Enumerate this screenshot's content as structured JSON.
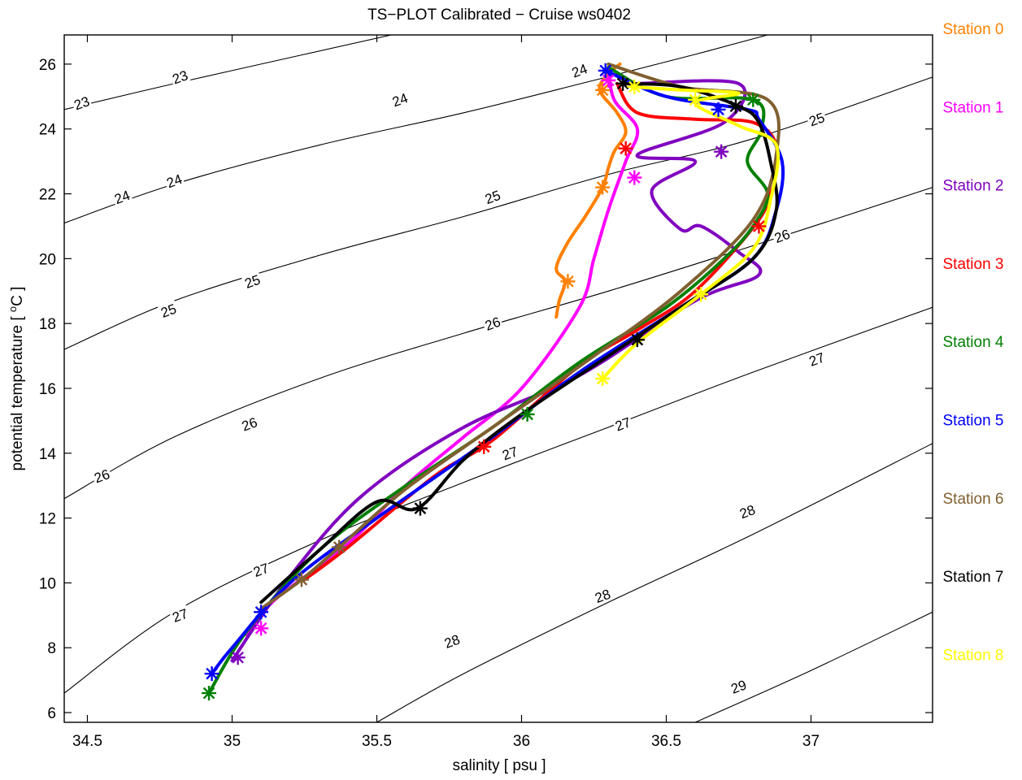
{
  "chart_data": {
    "type": "line",
    "title": "TS−PLOT Calibrated − Cruise ws0402",
    "xlabel": "salinity [ psu ]",
    "ylabel": "potential temperature [ ",
    "ylabel_sup": "o",
    "ylabel_unit": "C ]",
    "xlim": [
      34.42,
      37.42
    ],
    "ylim": [
      5.7,
      26.9
    ],
    "xticks": [
      "34.5",
      "35",
      "35.5",
      "36",
      "36.5",
      "37"
    ],
    "yticks": [
      "6",
      "8",
      "10",
      "12",
      "14",
      "16",
      "18",
      "20",
      "22",
      "24",
      "26"
    ],
    "grid": false,
    "legend_position": "right outside",
    "contours": [
      {
        "label": "23",
        "points": [
          [
            34.42,
            24.6
          ],
          [
            34.8,
            25.4
          ],
          [
            35.25,
            26.3
          ],
          [
            35.55,
            26.9
          ]
        ]
      },
      {
        "label": "24",
        "points": [
          [
            34.42,
            21.1
          ],
          [
            34.8,
            22.3
          ],
          [
            35.3,
            23.5
          ],
          [
            35.8,
            24.5
          ],
          [
            36.25,
            25.5
          ],
          [
            36.6,
            26.3
          ],
          [
            36.85,
            26.9
          ]
        ]
      },
      {
        "label": "25",
        "points": [
          [
            34.42,
            17.2
          ],
          [
            34.8,
            18.7
          ],
          [
            35.3,
            20.1
          ],
          [
            35.8,
            21.3
          ],
          [
            36.3,
            22.6
          ],
          [
            36.8,
            23.7
          ],
          [
            37.42,
            25.6
          ]
        ]
      },
      {
        "label": "26",
        "points": [
          [
            34.42,
            12.6
          ],
          [
            34.8,
            14.5
          ],
          [
            35.3,
            16.3
          ],
          [
            35.8,
            17.7
          ],
          [
            36.3,
            19.0
          ],
          [
            36.8,
            20.4
          ],
          [
            37.42,
            22.2
          ]
        ]
      },
      {
        "label": "27",
        "points": [
          [
            34.42,
            6.6
          ],
          [
            34.8,
            9.1
          ],
          [
            35.3,
            11.3
          ],
          [
            35.8,
            13.1
          ],
          [
            36.3,
            14.8
          ],
          [
            36.8,
            16.5
          ],
          [
            37.42,
            18.5
          ]
        ]
      },
      {
        "label": "28",
        "points": [
          [
            35.5,
            5.7
          ],
          [
            35.8,
            7.2
          ],
          [
            36.3,
            9.4
          ],
          [
            36.8,
            11.5
          ],
          [
            37.42,
            14.3
          ]
        ]
      },
      {
        "label": "29",
        "points": [
          [
            36.6,
            5.7
          ],
          [
            37.0,
            7.3
          ],
          [
            37.42,
            9.1
          ]
        ]
      }
    ],
    "contour_labels": [
      {
        "text": "23",
        "x": 34.48,
        "y": 24.8
      },
      {
        "text": "23",
        "x": 34.82,
        "y": 25.6
      },
      {
        "text": "24",
        "x": 34.62,
        "y": 21.9
      },
      {
        "text": "24",
        "x": 34.8,
        "y": 22.4
      },
      {
        "text": "24",
        "x": 35.58,
        "y": 24.9
      },
      {
        "text": "24",
        "x": 36.2,
        "y": 25.8
      },
      {
        "text": "25",
        "x": 34.78,
        "y": 18.4
      },
      {
        "text": "25",
        "x": 35.07,
        "y": 19.3
      },
      {
        "text": "25",
        "x": 35.9,
        "y": 21.9
      },
      {
        "text": "25",
        "x": 37.02,
        "y": 24.3
      },
      {
        "text": "26",
        "x": 34.55,
        "y": 13.3
      },
      {
        "text": "26",
        "x": 35.06,
        "y": 14.9
      },
      {
        "text": "26",
        "x": 35.9,
        "y": 18.0
      },
      {
        "text": "26",
        "x": 36.9,
        "y": 20.7
      },
      {
        "text": "27",
        "x": 34.82,
        "y": 9.0
      },
      {
        "text": "27",
        "x": 35.1,
        "y": 10.4
      },
      {
        "text": "27",
        "x": 35.96,
        "y": 14.0
      },
      {
        "text": "27",
        "x": 36.35,
        "y": 14.9
      },
      {
        "text": "27",
        "x": 37.02,
        "y": 16.9
      },
      {
        "text": "28",
        "x": 35.76,
        "y": 8.2
      },
      {
        "text": "28",
        "x": 36.28,
        "y": 9.6
      },
      {
        "text": "28",
        "x": 36.78,
        "y": 12.2
      },
      {
        "text": "29",
        "x": 36.75,
        "y": 6.8
      }
    ],
    "series": [
      {
        "name": "Station 0",
        "color": "#ff8000",
        "x": [
          36.34,
          36.3,
          36.27,
          36.33,
          36.36,
          36.32,
          36.3,
          36.28,
          36.22,
          36.16,
          36.12,
          36.15,
          36.13,
          36.12
        ],
        "y": [
          26.0,
          25.7,
          25.2,
          24.5,
          23.9,
          23.3,
          22.8,
          22.2,
          21.3,
          20.5,
          19.7,
          19.3,
          18.7,
          18.2
        ],
        "markers": [
          [
            36.28,
            25.2
          ],
          [
            36.28,
            22.2
          ],
          [
            36.16,
            19.3
          ]
        ]
      },
      {
        "name": "Station 1",
        "color": "#ff00ff",
        "x": [
          36.3,
          36.32,
          36.4,
          36.36,
          36.3,
          36.25,
          36.2,
          36.0,
          35.8,
          35.6,
          35.4,
          35.15,
          35.05
        ],
        "y": [
          25.9,
          24.9,
          24.0,
          23.0,
          21.5,
          20.0,
          18.5,
          16.0,
          14.5,
          13.0,
          11.2,
          9.5,
          8.4
        ],
        "markers": [
          [
            36.3,
            25.5
          ],
          [
            36.39,
            22.5
          ],
          [
            35.1,
            8.6
          ]
        ]
      },
      {
        "name": "Station 2",
        "color": "#8000c0",
        "x": [
          36.4,
          36.75,
          36.7,
          36.4,
          36.6,
          36.45,
          36.55,
          36.62,
          36.75,
          36.82,
          36.6,
          36.2,
          35.8,
          35.45,
          35.2,
          35.0
        ],
        "y": [
          25.4,
          25.4,
          24.2,
          23.2,
          23.0,
          22.1,
          20.9,
          21.0,
          20.2,
          19.5,
          18.7,
          16.4,
          14.8,
          12.7,
          10.2,
          7.6
        ],
        "markers": [
          [
            36.69,
            23.3
          ],
          [
            35.02,
            7.7
          ]
        ]
      },
      {
        "name": "Station 3",
        "color": "#ff0000",
        "x": [
          36.33,
          36.4,
          36.6,
          36.8,
          36.88,
          36.86,
          36.82,
          36.6,
          36.4,
          36.2,
          35.9,
          35.7,
          35.4,
          35.25
        ],
        "y": [
          25.4,
          24.5,
          24.3,
          24.2,
          23.5,
          22.3,
          21.2,
          19.0,
          17.8,
          16.7,
          14.4,
          13.3,
          11.1,
          10.1
        ],
        "markers": [
          [
            36.36,
            23.4
          ],
          [
            36.82,
            21.0
          ],
          [
            35.87,
            14.2
          ]
        ]
      },
      {
        "name": "Station 4",
        "color": "#008000",
        "x": [
          36.3,
          36.5,
          36.8,
          36.83,
          36.78,
          36.85,
          36.8,
          36.7,
          36.5,
          36.2,
          35.9,
          35.6,
          35.3,
          35.05,
          34.92
        ],
        "y": [
          25.9,
          25.0,
          24.9,
          24.0,
          23.0,
          22.0,
          21.0,
          20.0,
          18.5,
          16.8,
          14.8,
          13.0,
          11.0,
          8.5,
          6.6
        ],
        "markers": [
          [
            36.8,
            24.9
          ],
          [
            36.02,
            15.2
          ],
          [
            34.92,
            6.6
          ]
        ]
      },
      {
        "name": "Station 5",
        "color": "#0000ff",
        "x": [
          36.29,
          36.5,
          36.78,
          36.82,
          36.9,
          36.88,
          36.8,
          36.55,
          36.2,
          35.9,
          35.5,
          35.2,
          35.0,
          34.93
        ],
        "y": [
          25.8,
          25.0,
          24.6,
          24.3,
          23.0,
          21.5,
          20.0,
          18.5,
          16.5,
          14.5,
          12.0,
          10.0,
          8.0,
          7.2
        ],
        "markers": [
          [
            36.29,
            25.8
          ],
          [
            36.68,
            24.6
          ],
          [
            35.1,
            9.1
          ],
          [
            34.93,
            7.2
          ]
        ]
      },
      {
        "name": "Station 6",
        "color": "#806030",
        "x": [
          36.3,
          36.55,
          36.85,
          36.88,
          36.8,
          36.55,
          36.25,
          35.9,
          35.6,
          35.37,
          35.24,
          35.1
        ],
        "y": [
          26.0,
          25.3,
          24.9,
          23.2,
          21.2,
          19.0,
          17.0,
          14.8,
          12.9,
          11.1,
          10.1,
          9.2
        ],
        "markers": [
          [
            35.37,
            11.1
          ],
          [
            35.24,
            10.1
          ]
        ]
      },
      {
        "name": "Station 7",
        "color": "#000000",
        "x": [
          36.35,
          36.55,
          36.75,
          36.82,
          36.86,
          36.88,
          36.8,
          36.55,
          36.3,
          36.0,
          35.8,
          35.64,
          35.5,
          35.3,
          35.1
        ],
        "y": [
          25.4,
          25.3,
          24.7,
          24.2,
          23.0,
          21.5,
          20.0,
          18.5,
          17.0,
          15.2,
          13.8,
          12.3,
          12.5,
          11.0,
          9.4
        ],
        "markers": [
          [
            36.35,
            25.4
          ],
          [
            36.74,
            24.7
          ],
          [
            36.4,
            17.5
          ],
          [
            35.65,
            12.3
          ]
        ]
      },
      {
        "name": "Station 8",
        "color": "#ffff00",
        "x": [
          36.38,
          36.55,
          36.75,
          36.6,
          36.75,
          36.88,
          36.86,
          36.8,
          36.62,
          36.4,
          36.28
        ],
        "y": [
          25.3,
          25.2,
          25.1,
          24.8,
          24.1,
          23.5,
          21.8,
          20.3,
          18.9,
          17.4,
          16.3
        ],
        "markers": [
          [
            36.39,
            25.3
          ],
          [
            36.6,
            24.9
          ],
          [
            36.62,
            18.9
          ],
          [
            36.28,
            16.3
          ]
        ]
      }
    ]
  }
}
